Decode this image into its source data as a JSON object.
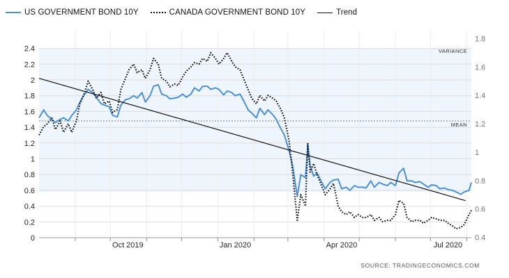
{
  "legend": {
    "us": "US GOVERNMENT BOND 10Y",
    "canada": "CANADA GOVERNMENT BOND 10Y",
    "trend": "Trend"
  },
  "annotations": {
    "variance": "VARIANCE",
    "mean": "MEAN"
  },
  "source": "SOURCE:  TRADINGECONOMICS.COM",
  "colors": {
    "us": "#4a90d9",
    "canada": "#111111",
    "trend": "#111111",
    "band": "#eef5fc",
    "grid": "#dcdcdc"
  },
  "chart_data": {
    "type": "line",
    "x_ticks": [
      "Oct 2019",
      "Jan 2020",
      "Apr 2020",
      "Jul 2020"
    ],
    "left_axis": {
      "ylim": [
        0,
        2.4
      ],
      "ticks": [
        "0",
        "0.2",
        "0.4",
        "0.6",
        "0.8",
        "1",
        "1.2",
        "1.4",
        "1.6",
        "1.8",
        "2",
        "2.2",
        "2.4"
      ]
    },
    "right_axis": {
      "ylim": [
        0.4,
        1.8
      ],
      "ticks": [
        "0.4",
        "0.6",
        "0.8",
        "1",
        "1.2",
        "1.4",
        "1.6",
        "1.8"
      ]
    },
    "grid": true,
    "legend_position": "top-left",
    "mean_line": 1.48,
    "variance_band": [
      0.58,
      2.4
    ],
    "trend": {
      "from": {
        "date": "2019-08-01",
        "value": 2.02
      },
      "to": {
        "date": "2020-07-31",
        "value": 0.47
      }
    },
    "series": [
      {
        "name": "US GOVERNMENT BOND 10Y",
        "axis": "left",
        "style": "solid",
        "points": [
          [
            "2019-08-01",
            1.52
          ],
          [
            "2019-08-05",
            1.62
          ],
          [
            "2019-08-08",
            1.55
          ],
          [
            "2019-08-12",
            1.5
          ],
          [
            "2019-08-15",
            1.46
          ],
          [
            "2019-08-19",
            1.5
          ],
          [
            "2019-08-22",
            1.52
          ],
          [
            "2019-08-26",
            1.48
          ],
          [
            "2019-08-29",
            1.55
          ],
          [
            "2019-09-02",
            1.62
          ],
          [
            "2019-09-05",
            1.72
          ],
          [
            "2019-09-09",
            1.82
          ],
          [
            "2019-09-12",
            1.88
          ],
          [
            "2019-09-16",
            1.84
          ],
          [
            "2019-09-19",
            1.78
          ],
          [
            "2019-09-23",
            1.7
          ],
          [
            "2019-09-26",
            1.68
          ],
          [
            "2019-09-30",
            1.66
          ],
          [
            "2019-10-03",
            1.55
          ],
          [
            "2019-10-07",
            1.53
          ],
          [
            "2019-10-10",
            1.68
          ],
          [
            "2019-10-14",
            1.75
          ],
          [
            "2019-10-17",
            1.76
          ],
          [
            "2019-10-21",
            1.8
          ],
          [
            "2019-10-24",
            1.77
          ],
          [
            "2019-10-28",
            1.84
          ],
          [
            "2019-10-31",
            1.72
          ],
          [
            "2019-11-04",
            1.8
          ],
          [
            "2019-11-07",
            1.92
          ],
          [
            "2019-11-11",
            1.94
          ],
          [
            "2019-11-14",
            1.82
          ],
          [
            "2019-11-18",
            1.8
          ],
          [
            "2019-11-21",
            1.76
          ],
          [
            "2019-11-25",
            1.77
          ],
          [
            "2019-11-28",
            1.78
          ],
          [
            "2019-12-02",
            1.82
          ],
          [
            "2019-12-05",
            1.78
          ],
          [
            "2019-12-09",
            1.82
          ],
          [
            "2019-12-12",
            1.9
          ],
          [
            "2019-12-16",
            1.86
          ],
          [
            "2019-12-19",
            1.92
          ],
          [
            "2019-12-23",
            1.92
          ],
          [
            "2019-12-26",
            1.88
          ],
          [
            "2019-12-30",
            1.9
          ],
          [
            "2020-01-02",
            1.88
          ],
          [
            "2020-01-06",
            1.81
          ],
          [
            "2020-01-09",
            1.86
          ],
          [
            "2020-01-13",
            1.84
          ],
          [
            "2020-01-16",
            1.8
          ],
          [
            "2020-01-20",
            1.82
          ],
          [
            "2020-01-23",
            1.74
          ],
          [
            "2020-01-27",
            1.62
          ],
          [
            "2020-01-30",
            1.58
          ],
          [
            "2020-02-03",
            1.52
          ],
          [
            "2020-02-06",
            1.64
          ],
          [
            "2020-02-10",
            1.56
          ],
          [
            "2020-02-13",
            1.62
          ],
          [
            "2020-02-17",
            1.56
          ],
          [
            "2020-02-20",
            1.5
          ],
          [
            "2020-02-24",
            1.38
          ],
          [
            "2020-02-27",
            1.3
          ],
          [
            "2020-03-02",
            1.1
          ],
          [
            "2020-03-05",
            0.92
          ],
          [
            "2020-03-09",
            0.52
          ],
          [
            "2020-03-12",
            0.8
          ],
          [
            "2020-03-16",
            0.76
          ],
          [
            "2020-03-18",
            1.18
          ],
          [
            "2020-03-20",
            0.92
          ],
          [
            "2020-03-23",
            0.78
          ],
          [
            "2020-03-26",
            0.82
          ],
          [
            "2020-03-30",
            0.7
          ],
          [
            "2020-04-02",
            0.62
          ],
          [
            "2020-04-06",
            0.7
          ],
          [
            "2020-04-09",
            0.73
          ],
          [
            "2020-04-13",
            0.74
          ],
          [
            "2020-04-16",
            0.62
          ],
          [
            "2020-04-20",
            0.64
          ],
          [
            "2020-04-23",
            0.6
          ],
          [
            "2020-04-27",
            0.66
          ],
          [
            "2020-04-30",
            0.64
          ],
          [
            "2020-05-04",
            0.64
          ],
          [
            "2020-05-07",
            0.63
          ],
          [
            "2020-05-11",
            0.72
          ],
          [
            "2020-05-14",
            0.64
          ],
          [
            "2020-05-18",
            0.7
          ],
          [
            "2020-05-21",
            0.68
          ],
          [
            "2020-05-25",
            0.66
          ],
          [
            "2020-05-28",
            0.7
          ],
          [
            "2020-06-01",
            0.66
          ],
          [
            "2020-06-04",
            0.82
          ],
          [
            "2020-06-08",
            0.88
          ],
          [
            "2020-06-11",
            0.72
          ],
          [
            "2020-06-15",
            0.72
          ],
          [
            "2020-06-18",
            0.7
          ],
          [
            "2020-06-22",
            0.71
          ],
          [
            "2020-06-25",
            0.68
          ],
          [
            "2020-06-29",
            0.64
          ],
          [
            "2020-07-02",
            0.67
          ],
          [
            "2020-07-06",
            0.66
          ],
          [
            "2020-07-09",
            0.62
          ],
          [
            "2020-07-13",
            0.63
          ],
          [
            "2020-07-16",
            0.61
          ],
          [
            "2020-07-20",
            0.6
          ],
          [
            "2020-07-23",
            0.58
          ],
          [
            "2020-07-27",
            0.55
          ],
          [
            "2020-07-30",
            0.58
          ],
          [
            "2020-08-03",
            0.6
          ],
          [
            "2020-08-05",
            0.7
          ]
        ]
      },
      {
        "name": "CANADA GOVERNMENT BOND 10Y",
        "axis": "right",
        "style": "dotted",
        "points": [
          [
            "2019-08-01",
            1.12
          ],
          [
            "2019-08-05",
            1.18
          ],
          [
            "2019-08-08",
            1.2
          ],
          [
            "2019-08-12",
            1.24
          ],
          [
            "2019-08-15",
            1.16
          ],
          [
            "2019-08-19",
            1.22
          ],
          [
            "2019-08-22",
            1.14
          ],
          [
            "2019-08-26",
            1.2
          ],
          [
            "2019-08-29",
            1.14
          ],
          [
            "2019-09-02",
            1.22
          ],
          [
            "2019-09-05",
            1.34
          ],
          [
            "2019-09-09",
            1.42
          ],
          [
            "2019-09-12",
            1.5
          ],
          [
            "2019-09-16",
            1.44
          ],
          [
            "2019-09-19",
            1.38
          ],
          [
            "2019-09-23",
            1.42
          ],
          [
            "2019-09-26",
            1.34
          ],
          [
            "2019-09-30",
            1.36
          ],
          [
            "2019-10-03",
            1.28
          ],
          [
            "2019-10-07",
            1.3
          ],
          [
            "2019-10-10",
            1.44
          ],
          [
            "2019-10-14",
            1.52
          ],
          [
            "2019-10-17",
            1.58
          ],
          [
            "2019-10-21",
            1.62
          ],
          [
            "2019-10-24",
            1.56
          ],
          [
            "2019-10-28",
            1.58
          ],
          [
            "2019-10-31",
            1.52
          ],
          [
            "2019-11-04",
            1.58
          ],
          [
            "2019-11-07",
            1.66
          ],
          [
            "2019-11-11",
            1.62
          ],
          [
            "2019-11-14",
            1.52
          ],
          [
            "2019-11-18",
            1.5
          ],
          [
            "2019-11-21",
            1.46
          ],
          [
            "2019-11-25",
            1.48
          ],
          [
            "2019-11-28",
            1.47
          ],
          [
            "2019-12-02",
            1.53
          ],
          [
            "2019-12-05",
            1.57
          ],
          [
            "2019-12-09",
            1.6
          ],
          [
            "2019-12-12",
            1.63
          ],
          [
            "2019-12-16",
            1.62
          ],
          [
            "2019-12-19",
            1.66
          ],
          [
            "2019-12-23",
            1.64
          ],
          [
            "2019-12-26",
            1.7
          ],
          [
            "2019-12-30",
            1.66
          ],
          [
            "2020-01-02",
            1.62
          ],
          [
            "2020-01-06",
            1.66
          ],
          [
            "2020-01-09",
            1.7
          ],
          [
            "2020-01-13",
            1.64
          ],
          [
            "2020-01-16",
            1.6
          ],
          [
            "2020-01-20",
            1.58
          ],
          [
            "2020-01-23",
            1.52
          ],
          [
            "2020-01-27",
            1.44
          ],
          [
            "2020-01-30",
            1.38
          ],
          [
            "2020-02-03",
            1.34
          ],
          [
            "2020-02-06",
            1.4
          ],
          [
            "2020-02-10",
            1.36
          ],
          [
            "2020-02-13",
            1.4
          ],
          [
            "2020-02-17",
            1.38
          ],
          [
            "2020-02-20",
            1.36
          ],
          [
            "2020-02-24",
            1.3
          ],
          [
            "2020-02-27",
            1.24
          ],
          [
            "2020-03-02",
            1.08
          ],
          [
            "2020-03-05",
            0.86
          ],
          [
            "2020-03-09",
            0.52
          ],
          [
            "2020-03-12",
            0.7
          ],
          [
            "2020-03-16",
            0.62
          ],
          [
            "2020-03-18",
            1.06
          ],
          [
            "2020-03-20",
            0.86
          ],
          [
            "2020-03-23",
            0.92
          ],
          [
            "2020-03-26",
            0.84
          ],
          [
            "2020-03-30",
            0.76
          ],
          [
            "2020-04-02",
            0.7
          ],
          [
            "2020-04-06",
            0.74
          ],
          [
            "2020-04-09",
            0.78
          ],
          [
            "2020-04-13",
            0.62
          ],
          [
            "2020-04-16",
            0.58
          ],
          [
            "2020-04-20",
            0.56
          ],
          [
            "2020-04-23",
            0.58
          ],
          [
            "2020-04-27",
            0.54
          ],
          [
            "2020-04-30",
            0.56
          ],
          [
            "2020-05-04",
            0.54
          ],
          [
            "2020-05-07",
            0.54
          ],
          [
            "2020-05-11",
            0.56
          ],
          [
            "2020-05-14",
            0.52
          ],
          [
            "2020-05-18",
            0.54
          ],
          [
            "2020-05-21",
            0.51
          ],
          [
            "2020-05-25",
            0.52
          ],
          [
            "2020-05-28",
            0.52
          ],
          [
            "2020-06-01",
            0.56
          ],
          [
            "2020-06-04",
            0.66
          ],
          [
            "2020-06-08",
            0.64
          ],
          [
            "2020-06-11",
            0.54
          ],
          [
            "2020-06-15",
            0.51
          ],
          [
            "2020-06-18",
            0.52
          ],
          [
            "2020-06-22",
            0.52
          ],
          [
            "2020-06-25",
            0.5
          ],
          [
            "2020-06-29",
            0.52
          ],
          [
            "2020-07-02",
            0.54
          ],
          [
            "2020-07-06",
            0.53
          ],
          [
            "2020-07-09",
            0.52
          ],
          [
            "2020-07-13",
            0.52
          ],
          [
            "2020-07-16",
            0.5
          ],
          [
            "2020-07-20",
            0.48
          ],
          [
            "2020-07-23",
            0.46
          ],
          [
            "2020-07-27",
            0.47
          ],
          [
            "2020-07-30",
            0.49
          ],
          [
            "2020-08-03",
            0.56
          ],
          [
            "2020-08-05",
            0.59
          ]
        ]
      }
    ]
  }
}
